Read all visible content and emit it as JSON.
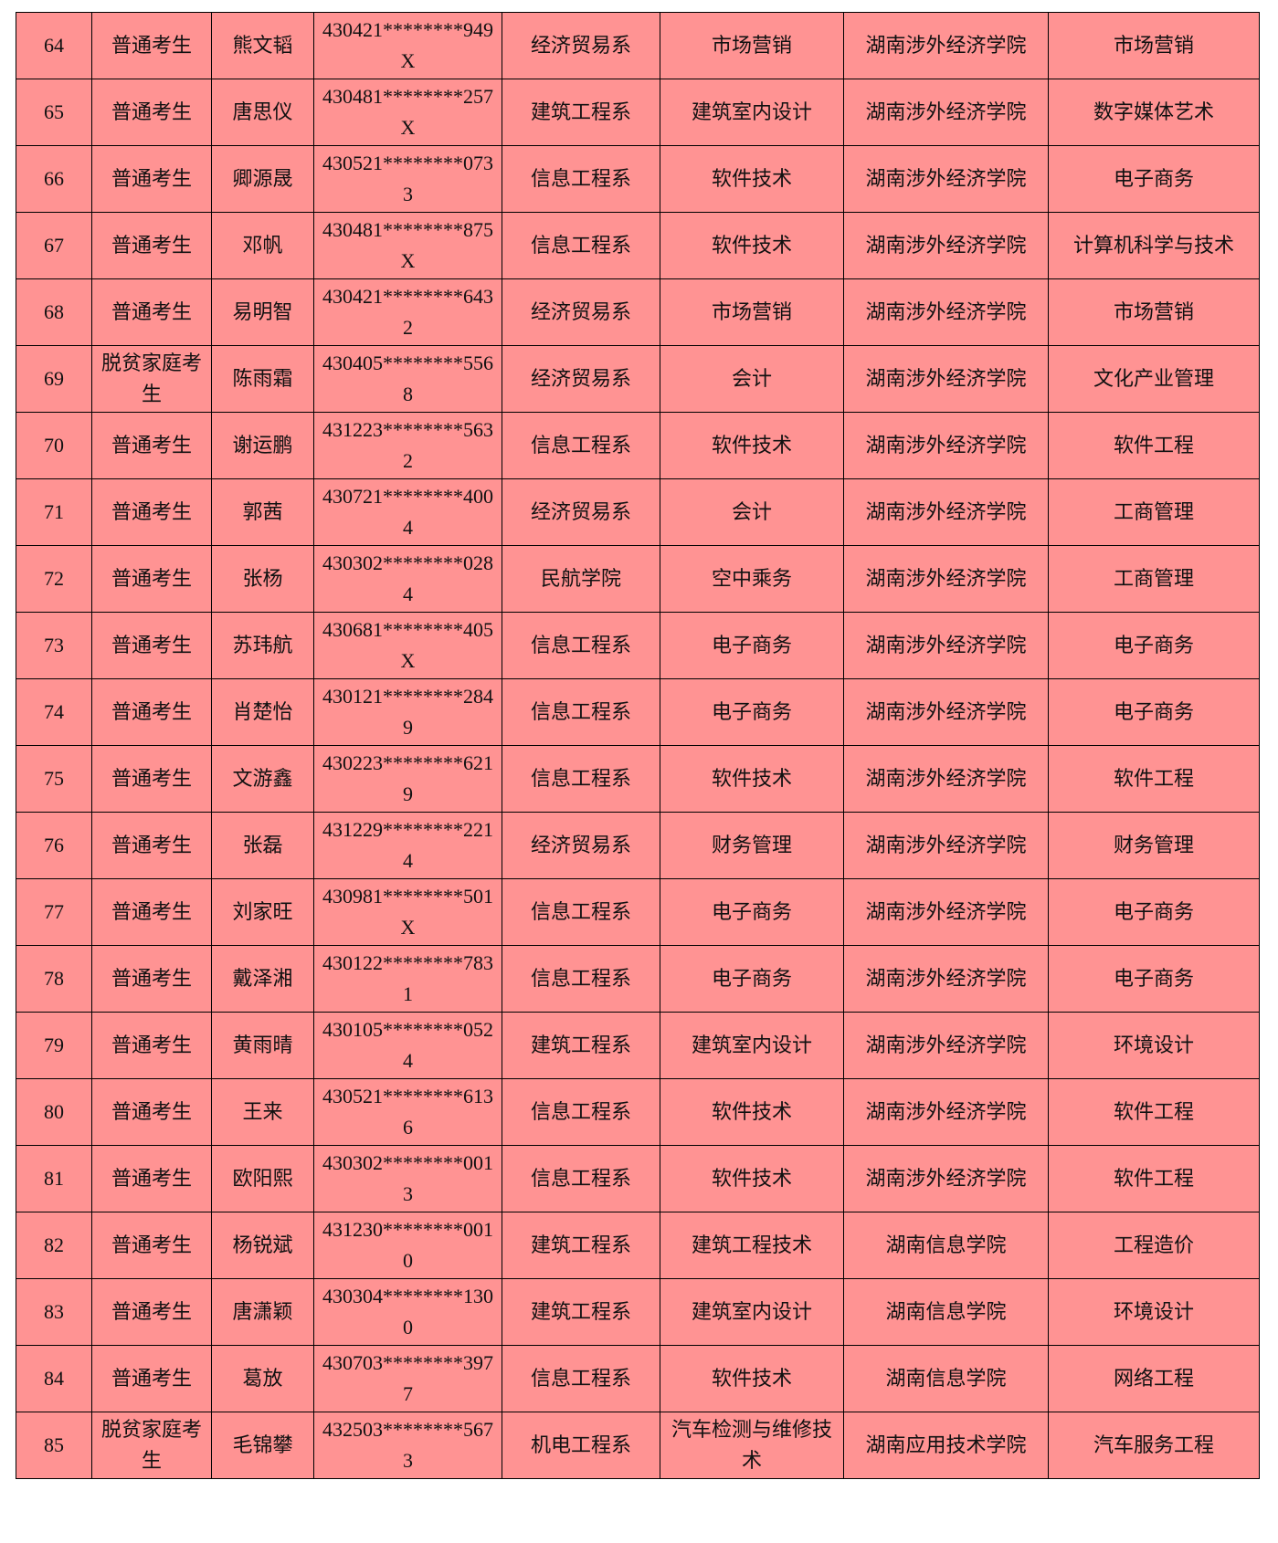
{
  "table": {
    "rows": [
      [
        "64",
        "普通考生",
        "熊文韬",
        "430421********949X",
        "经济贸易系",
        "市场营销",
        "湖南涉外经济学院",
        "市场营销"
      ],
      [
        "65",
        "普通考生",
        "唐思仪",
        "430481********257X",
        "建筑工程系",
        "建筑室内设计",
        "湖南涉外经济学院",
        "数字媒体艺术"
      ],
      [
        "66",
        "普通考生",
        "卿源晟",
        "430521********0733",
        "信息工程系",
        "软件技术",
        "湖南涉外经济学院",
        "电子商务"
      ],
      [
        "67",
        "普通考生",
        "邓帆",
        "430481********875X",
        "信息工程系",
        "软件技术",
        "湖南涉外经济学院",
        "计算机科学与技术"
      ],
      [
        "68",
        "普通考生",
        "易明智",
        "430421********6432",
        "经济贸易系",
        "市场营销",
        "湖南涉外经济学院",
        "市场营销"
      ],
      [
        "69",
        "脱贫家庭考生",
        "陈雨霜",
        "430405********5568",
        "经济贸易系",
        "会计",
        "湖南涉外经济学院",
        "文化产业管理"
      ],
      [
        "70",
        "普通考生",
        "谢运鹏",
        "431223********5632",
        "信息工程系",
        "软件技术",
        "湖南涉外经济学院",
        "软件工程"
      ],
      [
        "71",
        "普通考生",
        "郭茜",
        "430721********4004",
        "经济贸易系",
        "会计",
        "湖南涉外经济学院",
        "工商管理"
      ],
      [
        "72",
        "普通考生",
        "张杨",
        "430302********0284",
        "民航学院",
        "空中乘务",
        "湖南涉外经济学院",
        "工商管理"
      ],
      [
        "73",
        "普通考生",
        "苏玮航",
        "430681********405X",
        "信息工程系",
        "电子商务",
        "湖南涉外经济学院",
        "电子商务"
      ],
      [
        "74",
        "普通考生",
        "肖楚怡",
        "430121********2849",
        "信息工程系",
        "电子商务",
        "湖南涉外经济学院",
        "电子商务"
      ],
      [
        "75",
        "普通考生",
        "文游鑫",
        "430223********6219",
        "信息工程系",
        "软件技术",
        "湖南涉外经济学院",
        "软件工程"
      ],
      [
        "76",
        "普通考生",
        "张磊",
        "431229********2214",
        "经济贸易系",
        "财务管理",
        "湖南涉外经济学院",
        "财务管理"
      ],
      [
        "77",
        "普通考生",
        "刘家旺",
        "430981********501X",
        "信息工程系",
        "电子商务",
        "湖南涉外经济学院",
        "电子商务"
      ],
      [
        "78",
        "普通考生",
        "戴泽湘",
        "430122********7831",
        "信息工程系",
        "电子商务",
        "湖南涉外经济学院",
        "电子商务"
      ],
      [
        "79",
        "普通考生",
        "黄雨晴",
        "430105********0524",
        "建筑工程系",
        "建筑室内设计",
        "湖南涉外经济学院",
        "环境设计"
      ],
      [
        "80",
        "普通考生",
        "王来",
        "430521********6136",
        "信息工程系",
        "软件技术",
        "湖南涉外经济学院",
        "软件工程"
      ],
      [
        "81",
        "普通考生",
        "欧阳熙",
        "430302********0013",
        "信息工程系",
        "软件技术",
        "湖南涉外经济学院",
        "软件工程"
      ],
      [
        "82",
        "普通考生",
        "杨锐斌",
        "431230********0010",
        "建筑工程系",
        "建筑工程技术",
        "湖南信息学院",
        "工程造价"
      ],
      [
        "83",
        "普通考生",
        "唐潇颖",
        "430304********1300",
        "建筑工程系",
        "建筑室内设计",
        "湖南信息学院",
        "环境设计"
      ],
      [
        "84",
        "普通考生",
        "葛放",
        "430703********3977",
        "信息工程系",
        "软件技术",
        "湖南信息学院",
        "网络工程"
      ],
      [
        "85",
        "脱贫家庭考生",
        "毛锦攀",
        "432503********5673",
        "机电工程系",
        "汽车检测与维修技术",
        "湖南应用技术学院",
        "汽车服务工程"
      ]
    ]
  },
  "colors": {
    "cell_background": "#ff9393",
    "border": "#000000"
  }
}
